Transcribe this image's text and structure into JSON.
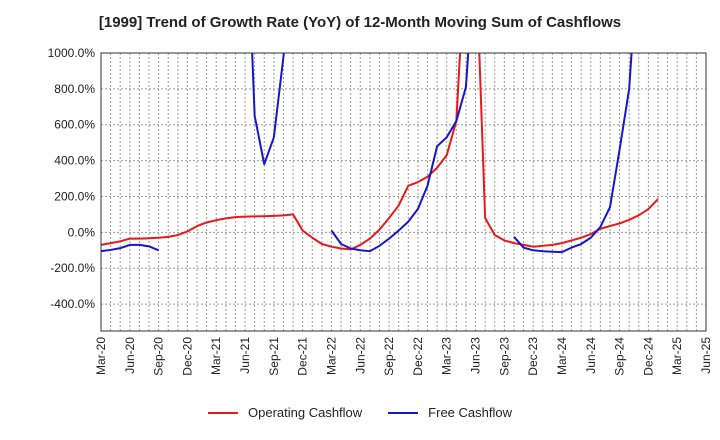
{
  "chart_data": {
    "type": "line",
    "title": "[1999]  Trend of Growth Rate (YoY) of 12-Month Moving Sum of Cashflows",
    "xlabel": "",
    "ylabel": "",
    "ylim": [
      -550,
      1000
    ],
    "y_ticks": [
      1000,
      800,
      600,
      400,
      200,
      0,
      -200,
      -400
    ],
    "y_tick_labels": [
      "1000.0%",
      "800.0%",
      "600.0%",
      "400.0%",
      "200.0%",
      "0.0%",
      "-200.0%",
      "-400.0%"
    ],
    "x_tick_labels": [
      "Mar-20",
      "Jun-20",
      "Sep-20",
      "Dec-20",
      "Mar-21",
      "Jun-21",
      "Sep-21",
      "Dec-21",
      "Mar-22",
      "Jun-22",
      "Sep-22",
      "Dec-22",
      "Mar-23",
      "Jun-23",
      "Sep-23",
      "Dec-23",
      "Mar-24",
      "Jun-24",
      "Sep-24",
      "Dec-24",
      "Mar-25",
      "Jun-25"
    ],
    "x": [
      "Mar-20",
      "Apr-20",
      "May-20",
      "Jun-20",
      "Jul-20",
      "Aug-20",
      "Sep-20",
      "Oct-20",
      "Nov-20",
      "Dec-20",
      "Jan-21",
      "Feb-21",
      "Mar-21",
      "Apr-21",
      "May-21",
      "Jun-21",
      "Jul-21",
      "Aug-21",
      "Sep-21",
      "Oct-21",
      "Nov-21",
      "Dec-21",
      "Jan-22",
      "Feb-22",
      "Mar-22",
      "Apr-22",
      "May-22",
      "Jun-22",
      "Jul-22",
      "Aug-22",
      "Sep-22",
      "Oct-22",
      "Nov-22",
      "Dec-22",
      "Jan-23",
      "Feb-23",
      "Mar-23",
      "Apr-23",
      "May-23",
      "Jun-23",
      "Jul-23",
      "Aug-23",
      "Sep-23",
      "Oct-23",
      "Nov-23",
      "Dec-23",
      "Jan-24",
      "Feb-24",
      "Mar-24",
      "Apr-24",
      "May-24",
      "Jun-24",
      "Jul-24",
      "Aug-24",
      "Sep-24",
      "Oct-24",
      "Nov-24",
      "Dec-24",
      "Jan-25",
      "Feb-25",
      "Mar-25",
      "Apr-25",
      "May-25",
      "Jun-25"
    ],
    "grid": true,
    "legend_position": "bottom",
    "series": [
      {
        "name": "Operating Cashflow",
        "color": "#e8191a",
        "values": [
          -70,
          -60,
          -50,
          -35,
          -35,
          -33,
          -30,
          -25,
          -15,
          5,
          35,
          55,
          68,
          78,
          85,
          88,
          89,
          90,
          92,
          95,
          100,
          10,
          -30,
          -65,
          -80,
          -90,
          -95,
          -70,
          -35,
          15,
          80,
          150,
          260,
          280,
          310,
          360,
          430,
          620,
          1600,
          1600,
          80,
          -15,
          -45,
          -60,
          -70,
          -80,
          -75,
          -70,
          -60,
          -45,
          -30,
          -10,
          20,
          35,
          50,
          70,
          95,
          130,
          185,
          null,
          null,
          null,
          null,
          null
        ]
      },
      {
        "name": "Free Cashflow",
        "color": "#1616cc",
        "values": [
          -105,
          -98,
          -88,
          -70,
          -70,
          -78,
          -100,
          null,
          null,
          null,
          null,
          null,
          null,
          null,
          null,
          2000,
          650,
          380,
          530,
          980,
          1500,
          null,
          null,
          null,
          10,
          -65,
          -90,
          -100,
          -105,
          -75,
          -35,
          10,
          60,
          130,
          260,
          480,
          530,
          620,
          810,
          1600,
          null,
          null,
          null,
          -25,
          -85,
          -100,
          -105,
          -108,
          -110,
          -85,
          -65,
          -30,
          30,
          140,
          460,
          800,
          1600,
          null,
          null,
          null,
          null,
          null,
          null,
          null
        ]
      }
    ]
  }
}
